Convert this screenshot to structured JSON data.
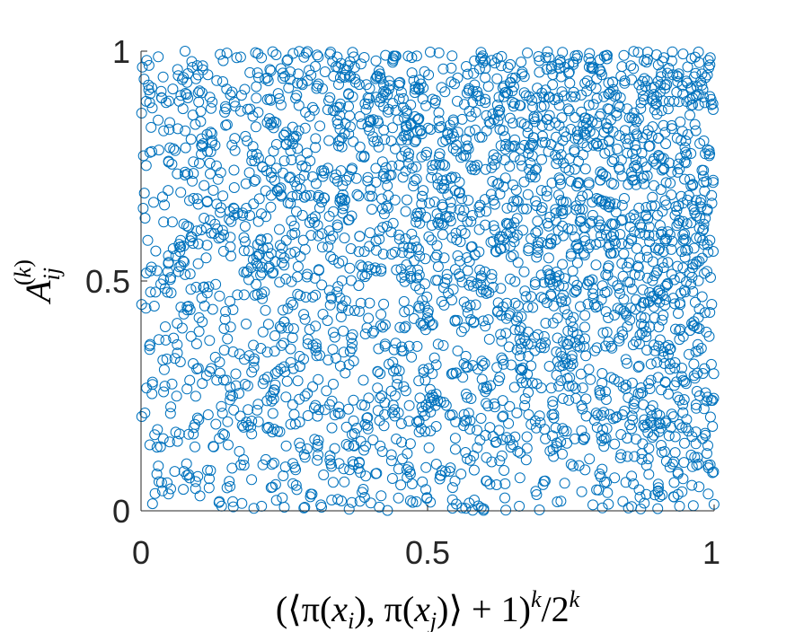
{
  "chart_data": {
    "type": "scatter",
    "title": "",
    "xlabel": "(⟨π(x_i), π(x_j)⟩ + 1)^k / 2^k",
    "ylabel": "A_ij^(k)",
    "xlim": [
      0,
      1
    ],
    "ylim": [
      0,
      1
    ],
    "x_ticks": [
      "0",
      "0.5",
      "1"
    ],
    "y_ticks": [
      "0",
      "0.5",
      "1"
    ],
    "grid": false,
    "marker": "open-circle",
    "marker_color": "#0072BD",
    "n_points": 3000,
    "distribution": "points spread over the whole unit square, denser at high x and high y, slightly sparser at low y",
    "series": [
      {
        "values": [
          [
            0.02,
            0.28
          ],
          [
            0.03,
            0.85
          ],
          [
            0.05,
            0.15
          ],
          [
            0.08,
            0.62
          ],
          [
            0.1,
            0.31
          ],
          [
            0.12,
            0.9
          ],
          [
            0.15,
            0.05
          ],
          [
            0.18,
            0.47
          ],
          [
            0.2,
            0.72
          ],
          [
            0.22,
            0.18
          ],
          [
            0.25,
            0.55
          ],
          [
            0.28,
            0.93
          ],
          [
            0.3,
            0.36
          ],
          [
            0.33,
            0.12
          ],
          [
            0.35,
            0.68
          ],
          [
            0.38,
            0.49
          ],
          [
            0.4,
            0.85
          ],
          [
            0.42,
            0.25
          ],
          [
            0.45,
            0.6
          ],
          [
            0.47,
            0.08
          ],
          [
            0.5,
            0.42
          ],
          [
            0.52,
            0.77
          ],
          [
            0.55,
            0.3
          ],
          [
            0.57,
            0.95
          ],
          [
            0.6,
            0.52
          ],
          [
            0.62,
            0.15
          ],
          [
            0.65,
            0.88
          ],
          [
            0.67,
            0.37
          ],
          [
            0.7,
            0.66
          ],
          [
            0.72,
            0.21
          ],
          [
            0.75,
            0.83
          ],
          [
            0.78,
            0.45
          ],
          [
            0.8,
            0.96
          ],
          [
            0.82,
            0.29
          ],
          [
            0.85,
            0.71
          ],
          [
            0.87,
            0.55
          ],
          [
            0.9,
            0.9
          ],
          [
            0.92,
            0.34
          ],
          [
            0.95,
            0.78
          ],
          [
            0.97,
            0.26
          ],
          [
            0.99,
            0.98
          ],
          [
            0.98,
            0.61
          ],
          [
            0.66,
            0.01
          ],
          [
            0.93,
            0.03
          ],
          [
            0.16,
            0.02
          ],
          [
            0.01,
            0.98
          ],
          [
            0.48,
            0.64
          ],
          [
            0.6,
            0.98
          ],
          [
            0.44,
            0.98
          ],
          [
            0.83,
            0.86
          ]
        ]
      }
    ]
  }
}
